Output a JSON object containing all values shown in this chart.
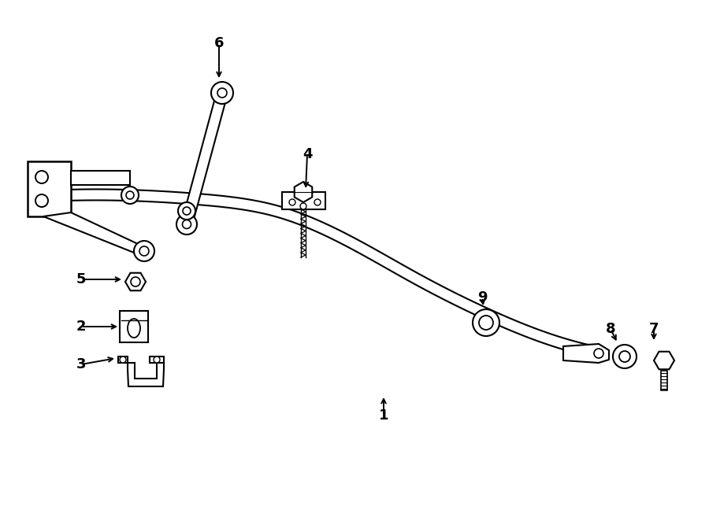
{
  "bg_color": "#ffffff",
  "line_color": "#000000",
  "fig_width": 9.0,
  "fig_height": 6.62,
  "dpi": 100
}
